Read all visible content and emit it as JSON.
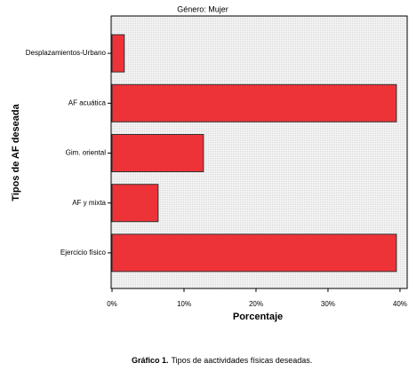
{
  "chart_data": {
    "type": "bar",
    "orientation": "horizontal",
    "title": "Género: Mujer",
    "categories": [
      "Desplazamientos-Urbano",
      "AF acuática",
      "Gim. oriental",
      "AF y mixta",
      "Ejercicio físico"
    ],
    "values": [
      1.7,
      39.5,
      12.7,
      6.4,
      39.5
    ],
    "color": "#ee3338",
    "xlim": [
      0,
      41
    ],
    "xticks": [
      {
        "value": 0,
        "label": "0%"
      },
      {
        "value": 10,
        "label": "10%"
      },
      {
        "value": 20,
        "label": "20%"
      },
      {
        "value": 30,
        "label": "30%"
      },
      {
        "value": 40,
        "label": "40%"
      }
    ],
    "xlabel": "Porcentaje",
    "ylabel": "Tipos de AF deseada"
  },
  "caption": {
    "label": "Gráfico 1.",
    "text": "Tipos de aactividades físicas deseadas."
  }
}
